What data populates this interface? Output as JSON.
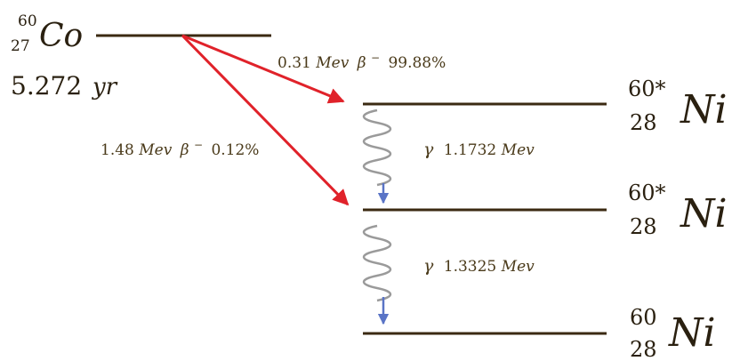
{
  "colors": {
    "level": "#3b2a12",
    "arrow": "#e0222a",
    "text": "#4a3a1a",
    "wave": "#9a9a9a",
    "wave_arrow": "#5a74c6"
  },
  "parent": {
    "mass": "60",
    "z": "27",
    "symbol": "Co",
    "halflife_value": "5.272",
    "halflife_unit": "yr"
  },
  "levels": [
    {
      "mass": "60*",
      "z": "28",
      "symbol": "Ni"
    },
    {
      "mass": "60*",
      "z": "28",
      "symbol": "Ni"
    },
    {
      "mass": "60",
      "z": "28",
      "symbol": "Ni"
    }
  ],
  "beta_decays": [
    {
      "energy": "0.31",
      "unit": "Mev",
      "particle": "β",
      "charge": "−",
      "branching": "99.88%"
    },
    {
      "energy": "1.48",
      "unit": "Mev",
      "particle": "β",
      "charge": "−",
      "branching": "0.12%"
    }
  ],
  "gamma_transitions": [
    {
      "symbol": "γ",
      "energy": "1.1732",
      "unit": "Mev"
    },
    {
      "symbol": "γ",
      "energy": "1.3325",
      "unit": "Mev"
    }
  ]
}
